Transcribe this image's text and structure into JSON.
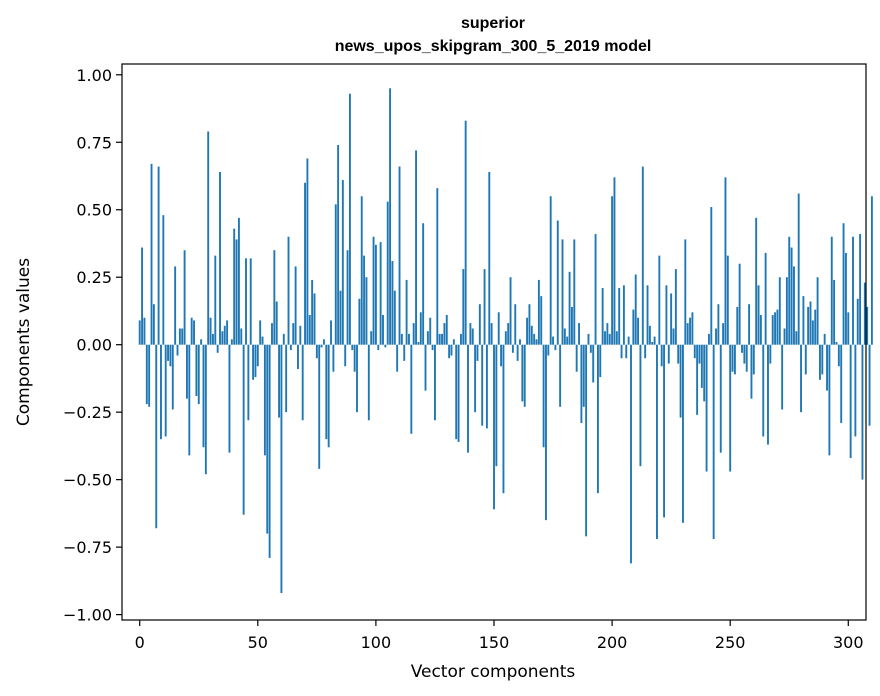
{
  "chart_data": {
    "type": "bar",
    "title": [
      "superior",
      "news_upos_skipgram_300_5_2019 model"
    ],
    "xlabel": "Vector components",
    "ylabel": "Components values",
    "xlim": [
      -7.5,
      307.5
    ],
    "ylim": [
      -1.02,
      1.04
    ],
    "xticks": [
      0,
      50,
      100,
      150,
      200,
      250,
      300
    ],
    "yticks": [
      -1.0,
      -0.75,
      -0.5,
      -0.25,
      0.0,
      0.25,
      0.5,
      0.75,
      1.0
    ],
    "xtick_labels": [
      "0",
      "50",
      "100",
      "150",
      "200",
      "250",
      "300"
    ],
    "ytick_labels": [
      "−1.00",
      "−0.75",
      "−0.50",
      "−0.25",
      "0.00",
      "0.25",
      "0.50",
      "0.75",
      "1.00"
    ],
    "grid": false,
    "bar_color": "#1f77b4",
    "categories": "component index 0..299",
    "values": [
      0.09,
      0.36,
      0.1,
      -0.22,
      -0.23,
      0.67,
      0.15,
      -0.68,
      0.66,
      -0.35,
      0.48,
      -0.34,
      -0.06,
      -0.08,
      -0.24,
      0.29,
      -0.04,
      0.06,
      0.06,
      0.35,
      -0.2,
      -0.41,
      0.1,
      0.09,
      -0.19,
      -0.22,
      0.02,
      -0.38,
      -0.48,
      0.79,
      0.1,
      0.04,
      0.33,
      -0.03,
      0.64,
      0.05,
      0.07,
      0.09,
      -0.4,
      0.02,
      0.43,
      0.39,
      0.47,
      0.06,
      -0.63,
      0.32,
      -0.28,
      0.32,
      -0.13,
      -0.12,
      -0.08,
      0.09,
      0.03,
      -0.41,
      -0.7,
      -0.79,
      0.08,
      0.35,
      0.16,
      -0.27,
      -0.92,
      0.04,
      -0.25,
      0.4,
      -0.02,
      0.08,
      0.29,
      -0.09,
      0.07,
      -0.28,
      0.6,
      0.69,
      0.11,
      0.24,
      0.19,
      -0.05,
      -0.46,
      -0.01,
      0.02,
      -0.35,
      -0.38,
      0.09,
      -0.1,
      0.52,
      0.74,
      0.2,
      0.61,
      -0.08,
      0.35,
      0.93,
      -0.02,
      -0.1,
      -0.25,
      0.17,
      0.55,
      0.33,
      0.25,
      -0.28,
      0.05,
      0.4,
      0.37,
      -0.02,
      0.38,
      0.11,
      -0.01,
      0.53,
      0.95,
      0.31,
      0.2,
      -0.1,
      0.66,
      0.04,
      -0.06,
      0.24,
      0.04,
      -0.33,
      0.08,
      0.72,
      0.01,
      0.12,
      0.45,
      -0.17,
      0.05,
      0.1,
      -0.02,
      -0.28,
      0.58,
      0.04,
      0.04,
      0.08,
      0.11,
      -0.05,
      -0.04,
      0.02,
      -0.35,
      -0.36,
      0.04,
      0.28,
      0.83,
      -0.4,
      0.08,
      0.06,
      -0.25,
      -0.06,
      0.15,
      -0.3,
      0.28,
      -0.31,
      0.64,
      0.08,
      -0.61,
      -0.45,
      0.12,
      -0.08,
      -0.55,
      0.05,
      0.08,
      0.25,
      -0.03,
      0.15,
      -0.06,
      0.02,
      -0.21,
      -0.23,
      0.1,
      0.15,
      0.07,
      0.04,
      0.02,
      0.24,
      0.18,
      -0.38,
      -0.65,
      -0.04,
      0.55,
      0.03,
      -0.02,
      0.46,
      -0.23,
      0.39,
      0.06,
      0.03,
      0.27,
      0.14,
      0.39,
      -0.1,
      0.08,
      -0.29,
      -0.23,
      -0.71,
      0.04,
      -0.03,
      -0.14,
      0.41,
      -0.55,
      -0.12,
      0.21,
      0.05,
      0.08,
      0.04,
      0.55,
      0.62,
      0.05,
      0.21,
      -0.05,
      0.22,
      -0.05,
      0.03,
      -0.81,
      0.13,
      0.26,
      0.1,
      -0.45,
      0.66,
      -0.05,
      0.22,
      0.07,
      0.01,
      0.03,
      -0.72,
      0.33,
      -0.08,
      -0.64,
      0.22,
      -0.07,
      0.19,
      0.06,
      0.28,
      -0.07,
      -0.27,
      -0.66,
      0.39,
      0.08,
      0.1,
      0.12,
      -0.05,
      -0.26,
      -0.07,
      -0.16,
      -0.21,
      -0.47,
      0.04,
      0.51,
      -0.72,
      0.06,
      0.15,
      -0.4,
      0.08,
      0.62,
      0.33,
      -0.47,
      -0.1,
      -0.11,
      0.14,
      0.3,
      -0.03,
      -0.07,
      -0.1,
      0.15,
      -0.2,
      -0.11,
      0.47,
      0.22,
      0.11,
      -0.34,
      0.34,
      -0.37,
      -0.07,
      0.11,
      0.12,
      0.13,
      0.25,
      -0.24,
      0.06,
      0.25,
      0.4,
      0.36,
      0.29,
      0.05,
      0.56,
      -0.25,
      0.18,
      -0.11,
      0.14,
      0.16,
      0.09,
      0.13,
      0.25,
      -0.13,
      -0.11,
      0.04,
      -0.17,
      -0.41,
      0.4,
      0.24,
      0.01,
      -0.08,
      -0.29,
      0.45,
      0.34,
      0.12,
      -0.42,
      0.4,
      -0.34,
      0.17,
      0.41,
      -0.5,
      0.23,
      0.14,
      -0.3,
      0.55
    ]
  }
}
